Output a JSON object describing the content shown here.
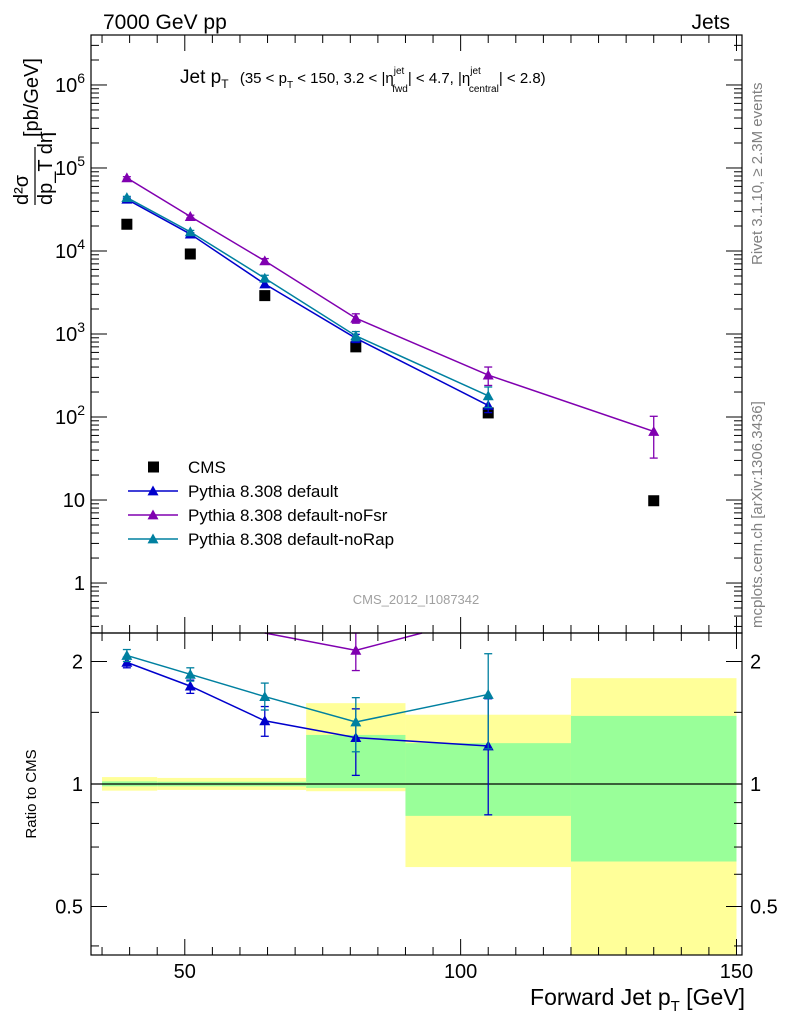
{
  "header": {
    "left": "7000 GeV pp",
    "right": "Jets"
  },
  "side_labels": {
    "rivet": "Rivet 3.1.10, ≥ 2.3M events",
    "mcplots": "mcplots.cern.ch [arXiv:1306.3436]"
  },
  "watermark": "CMS_2012_I1087342",
  "plot_title": {
    "main": "Jet p",
    "main_sub": "T",
    "cond": "(35 < p",
    "cond_sub": "T",
    "cond2": " < 150, 3.2 < |η",
    "eta_sup": "jet",
    "eta_sub": "fwd",
    "cond3": "| < 4.7, |η",
    "eta2_sup": "jet",
    "eta2_sub": "central",
    "cond4": "| < 2.8)"
  },
  "chart_data": {
    "type": "scatter",
    "xlabel": "Forward Jet p_T [GeV]",
    "xlabel_main": "Forward Jet p",
    "xlabel_sub": "T",
    "xlabel_unit": " [GeV]",
    "ylabel": "d²σ/dp_T dη [pb/GeV]",
    "ylabel_unit": "[pb/GeV]",
    "ylabel_num": "d²σ",
    "ylabel_den": "dp_T dη",
    "xlim": [
      33,
      151
    ],
    "ylim": [
      0.25,
      4000000
    ],
    "yscale": "log",
    "x_ticks": [
      50,
      100,
      150
    ],
    "x_tick_labels": [
      "50",
      "100",
      "150"
    ],
    "y_ticks": [
      1,
      10,
      100,
      1000,
      10000,
      100000,
      1000000
    ],
    "y_tick_labels": [
      "1",
      "10",
      "10²",
      "10³",
      "10⁴",
      "10⁵",
      "10⁶"
    ],
    "legend_position": "bottom-left",
    "series": [
      {
        "name": "CMS",
        "color": "#000000",
        "marker": "square",
        "x": [
          39.5,
          51,
          64.5,
          81,
          105,
          135
        ],
        "y": [
          21000,
          9200,
          2900,
          700,
          112,
          9.8
        ]
      },
      {
        "name": "Pythia 8.308 default",
        "color": "#0000cc",
        "marker": "triangle",
        "x": [
          39.5,
          51,
          64.5,
          81,
          105
        ],
        "y": [
          42000,
          16000,
          4000,
          890,
          138
        ],
        "yerr": [
          1500,
          600,
          300,
          100,
          25
        ]
      },
      {
        "name": "Pythia 8.308 default-noFsr",
        "color": "#8000b0",
        "marker": "triangle",
        "x": [
          39.5,
          51,
          64.5,
          81,
          105,
          135
        ],
        "y": [
          76000,
          26000,
          7600,
          1550,
          320,
          67
        ],
        "yerr": [
          2500,
          1000,
          500,
          200,
          80,
          35
        ]
      },
      {
        "name": "Pythia 8.308 default-noRap",
        "color": "#0080a0",
        "marker": "triangle",
        "x": [
          39.5,
          51,
          64.5,
          81,
          105
        ],
        "y": [
          44000,
          17000,
          4700,
          950,
          180
        ],
        "yerr": [
          1500,
          700,
          400,
          120,
          50
        ]
      }
    ],
    "ratio": {
      "ylabel": "Ratio to CMS",
      "ylim": [
        0.38,
        2.35
      ],
      "yscale": "log",
      "y_ticks": [
        0.5,
        1,
        2
      ],
      "y_tick_labels": [
        "0.5",
        "1",
        "2"
      ],
      "bands": [
        {
          "x0": 35,
          "x1": 45,
          "yellow": [
            0.963,
            1.04
          ],
          "green": [
            0.987,
            1.015
          ]
        },
        {
          "x0": 45,
          "x1": 72,
          "yellow": [
            0.967,
            1.035
          ],
          "green": [
            0.987,
            1.013
          ]
        },
        {
          "x0": 72,
          "x1": 90,
          "yellow": [
            0.96,
            1.58
          ],
          "green": [
            0.978,
            1.32
          ]
        },
        {
          "x0": 90,
          "x1": 120,
          "yellow": [
            0.625,
            1.48
          ],
          "green": [
            0.835,
            1.26
          ]
        },
        {
          "x0": 120,
          "x1": 150,
          "yellow": [
            0.38,
            1.82
          ],
          "green": [
            0.645,
            1.47
          ]
        }
      ],
      "series": [
        {
          "name": "Pythia 8.308 default",
          "color": "#0000cc",
          "x": [
            39.5,
            51,
            64.5,
            81,
            105
          ],
          "y": [
            1.99,
            1.74,
            1.43,
            1.3,
            1.24
          ],
          "lo": [
            1.93,
            1.67,
            1.31,
            1.05,
            0.84
          ],
          "hi": [
            2.05,
            1.8,
            1.55,
            1.53,
            1.62
          ]
        },
        {
          "name": "Pythia 8.308 default-noFsr",
          "color": "#8000b0",
          "x": [
            64.5,
            81,
            93
          ],
          "y": [
            2.6,
            2.13,
            2.5
          ],
          "lo": [
            2.5,
            1.9,
            2.4
          ],
          "hi": [
            2.7,
            2.35,
            2.6
          ]
        },
        {
          "name": "Pythia 8.308 default-noRap",
          "color": "#0080a0",
          "x": [
            39.5,
            51,
            64.5,
            81,
            105
          ],
          "y": [
            2.07,
            1.86,
            1.64,
            1.42,
            1.66
          ],
          "lo": [
            2.0,
            1.79,
            1.52,
            1.2,
            1.22
          ],
          "hi": [
            2.14,
            1.93,
            1.77,
            1.63,
            2.09
          ]
        }
      ]
    }
  }
}
